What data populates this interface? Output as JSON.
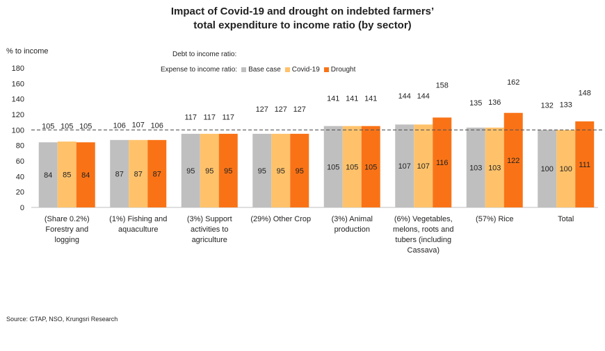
{
  "title_line1": "Impact of Covid-19 and drought on indebted farmers’",
  "title_line2": "total expenditure to income ratio (by sector)",
  "source": "Source: GTAP, NSO, Krungsri Research",
  "legend": {
    "debt_label": "Debt to income ratio:",
    "expense_label": "Expense to income ratio:"
  },
  "chart_data": {
    "type": "bar",
    "ylabel": "% to income",
    "ylim": [
      0,
      180
    ],
    "yticks": [
      0,
      20,
      40,
      60,
      80,
      100,
      120,
      140,
      160,
      180
    ],
    "reference_line": 100,
    "grid": false,
    "legend_position": "top",
    "categories": [
      [
        "(Share 0.2%)",
        "Forestry and",
        "logging"
      ],
      [
        "(1%) Fishing and",
        "aquaculture"
      ],
      [
        "(3%) Support",
        "activities to",
        "agriculture"
      ],
      [
        "(29%) Other Crop"
      ],
      [
        "(3%) Animal",
        "production"
      ],
      [
        "(6%) Vegetables,",
        "melons, roots and",
        "tubers (including",
        "Cassava)"
      ],
      [
        "(57%) Rice"
      ],
      [
        "Total"
      ]
    ],
    "series": [
      {
        "name": "Base case",
        "color": "#bfbfbf",
        "values": [
          84,
          87,
          95,
          95,
          105,
          107,
          103,
          100
        ],
        "debt_to_income": [
          105,
          106,
          117,
          127,
          141,
          144,
          135,
          132
        ]
      },
      {
        "name": "Covid-19",
        "color": "#ffc26b",
        "values": [
          85,
          87,
          95,
          95,
          105,
          107,
          103,
          100
        ],
        "debt_to_income": [
          105,
          107,
          117,
          127,
          141,
          144,
          136,
          133
        ]
      },
      {
        "name": "Drought",
        "color": "#f97316",
        "values": [
          84,
          87,
          95,
          95,
          105,
          116,
          122,
          111
        ],
        "debt_to_income": [
          105,
          106,
          117,
          127,
          141,
          158,
          162,
          148
        ]
      }
    ]
  }
}
